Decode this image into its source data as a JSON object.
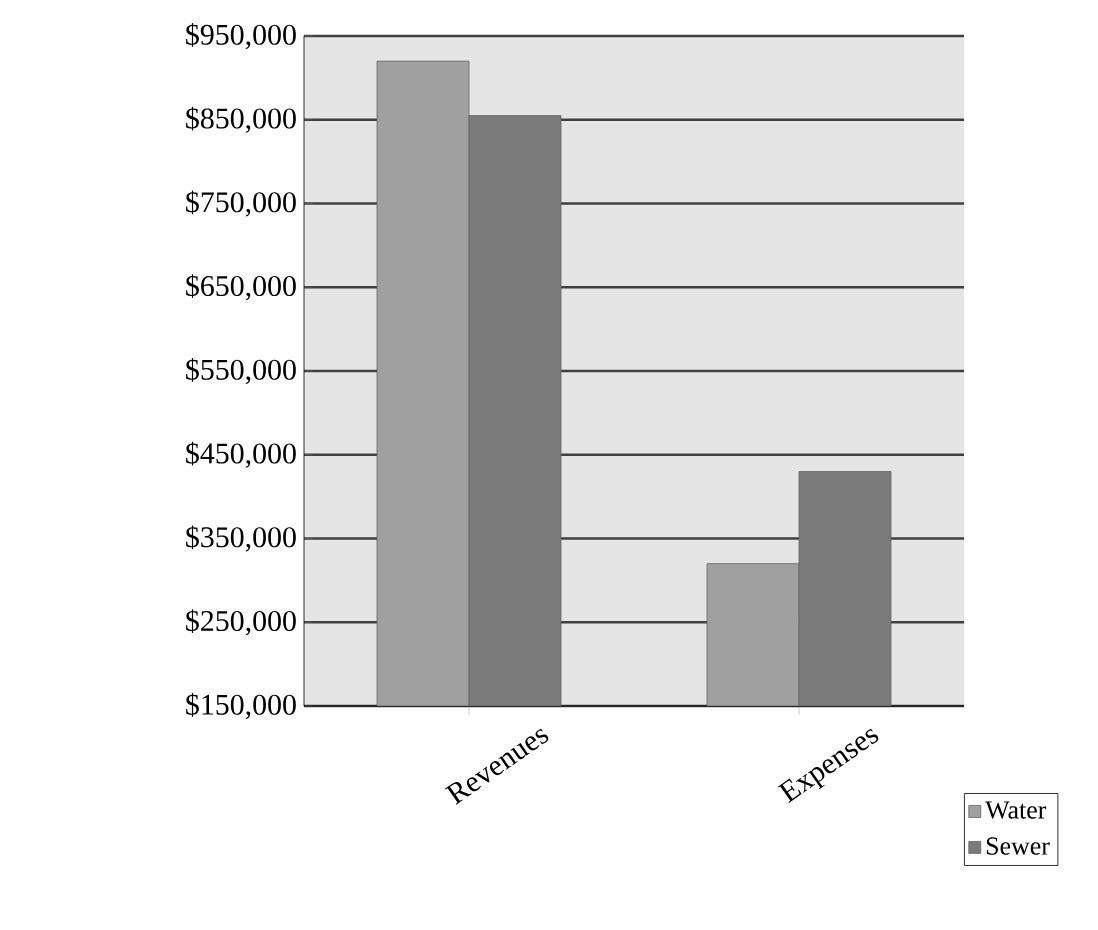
{
  "chart_data": {
    "type": "bar",
    "categories": [
      "Revenues",
      "Expenses"
    ],
    "series": [
      {
        "name": "Water",
        "color": "#a0a0a0",
        "values": [
          920000,
          320000
        ]
      },
      {
        "name": "Sewer",
        "color": "#7a7a7a",
        "values": [
          855000,
          430000
        ]
      }
    ],
    "ylim": [
      150000,
      950000
    ],
    "yticks": [
      {
        "value": 150000,
        "label": "$150,000"
      },
      {
        "value": 250000,
        "label": "$250,000"
      },
      {
        "value": 350000,
        "label": "$350,000"
      },
      {
        "value": 450000,
        "label": "$450,000"
      },
      {
        "value": 550000,
        "label": "$550,000"
      },
      {
        "value": 650000,
        "label": "$650,000"
      },
      {
        "value": 750000,
        "label": "$750,000"
      },
      {
        "value": 850000,
        "label": "$850,000"
      },
      {
        "value": 950000,
        "label": "$950,000"
      }
    ],
    "grid": "y",
    "legend": "bottom right"
  }
}
